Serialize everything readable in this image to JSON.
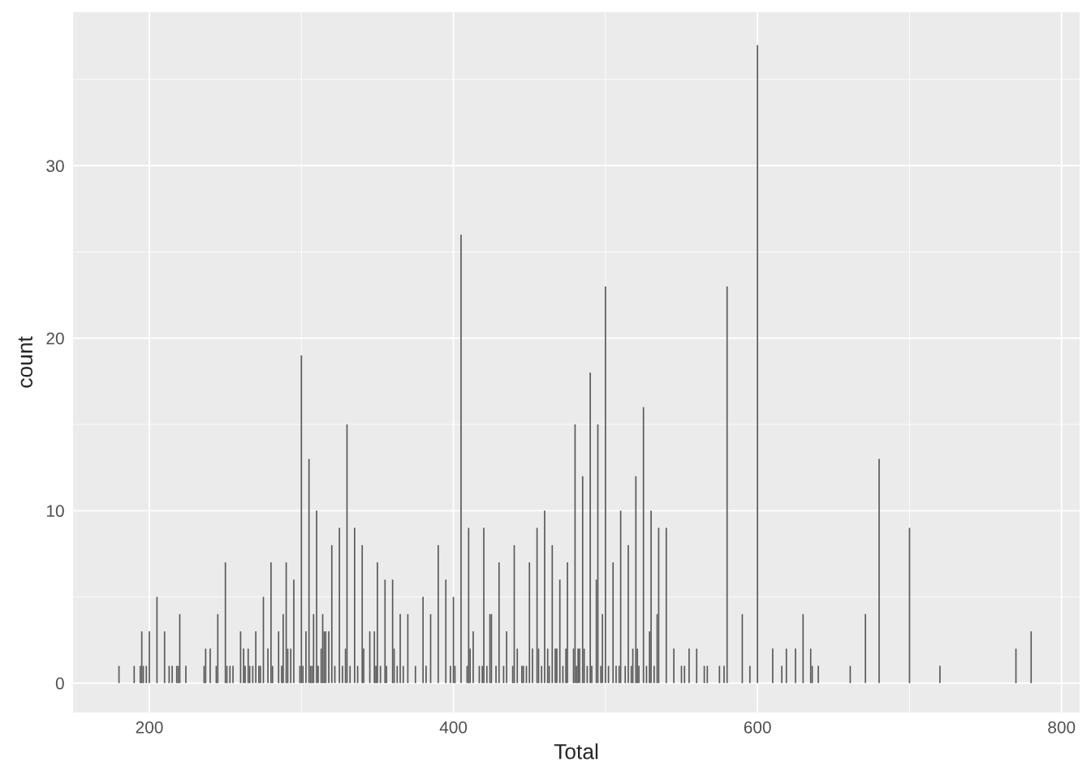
{
  "chart_data": {
    "type": "bar",
    "xlabel": "Total",
    "ylabel": "count",
    "color": "#595959",
    "grid": true,
    "x": [
      180,
      190,
      194,
      195,
      196,
      198,
      200,
      205,
      210,
      213,
      215,
      218,
      219,
      220,
      224,
      236,
      237,
      240,
      244,
      245,
      250,
      251,
      253,
      255,
      260,
      262,
      263,
      265,
      266,
      268,
      270,
      272,
      273,
      275,
      278,
      280,
      281,
      285,
      287,
      288,
      290,
      291,
      293,
      295,
      299,
      300,
      301,
      303,
      305,
      306,
      307,
      308,
      310,
      311,
      313,
      314,
      315,
      316,
      318,
      320,
      322,
      325,
      327,
      329,
      330,
      332,
      335,
      337,
      340,
      341,
      345,
      348,
      349,
      350,
      352,
      355,
      356,
      360,
      361,
      363,
      365,
      367,
      370,
      375,
      380,
      382,
      385,
      390,
      395,
      398,
      400,
      401,
      405,
      409,
      410,
      411,
      413,
      417,
      419,
      420,
      422,
      424,
      425,
      428,
      430,
      433,
      435,
      439,
      440,
      442,
      445,
      446,
      448,
      450,
      452,
      455,
      456,
      458,
      460,
      462,
      463,
      465,
      467,
      468,
      470,
      472,
      474,
      475,
      479,
      480,
      481,
      482,
      483,
      485,
      486,
      488,
      490,
      491,
      494,
      495,
      497,
      498,
      500,
      502,
      505,
      507,
      509,
      510,
      513,
      515,
      517,
      518,
      520,
      521,
      522,
      525,
      527,
      529,
      530,
      532,
      534,
      535,
      540,
      545,
      550,
      552,
      555,
      560,
      565,
      567,
      575,
      578,
      580,
      590,
      595,
      600,
      610,
      616,
      619,
      625,
      630,
      635,
      636,
      640,
      661,
      671,
      680,
      700,
      720,
      770,
      780
    ],
    "values": [
      1,
      1,
      1,
      3,
      1,
      1,
      3,
      5,
      3,
      1,
      1,
      1,
      1,
      4,
      1,
      1,
      2,
      2,
      1,
      4,
      7,
      1,
      1,
      1,
      3,
      2,
      1,
      2,
      1,
      1,
      3,
      1,
      1,
      5,
      2,
      7,
      1,
      3,
      1,
      4,
      7,
      2,
      2,
      6,
      1,
      19,
      1,
      3,
      13,
      1,
      1,
      4,
      10,
      1,
      2,
      4,
      3,
      3,
      3,
      8,
      1,
      9,
      1,
      2,
      15,
      1,
      9,
      1,
      8,
      2,
      3,
      3,
      1,
      7,
      1,
      6,
      1,
      6,
      2,
      1,
      4,
      1,
      4,
      1,
      5,
      1,
      4,
      8,
      6,
      1,
      5,
      1,
      26,
      1,
      9,
      2,
      3,
      1,
      1,
      9,
      1,
      4,
      4,
      1,
      7,
      1,
      3,
      1,
      8,
      2,
      1,
      1,
      1,
      7,
      2,
      9,
      2,
      1,
      10,
      2,
      1,
      8,
      2,
      2,
      6,
      1,
      2,
      7,
      2,
      15,
      1,
      2,
      2,
      12,
      2,
      1,
      18,
      1,
      6,
      15,
      1,
      4,
      23,
      1,
      7,
      1,
      1,
      10,
      1,
      8,
      1,
      2,
      12,
      2,
      1,
      16,
      1,
      3,
      10,
      1,
      4,
      9,
      9,
      2,
      1,
      1,
      2,
      2,
      1,
      1,
      1,
      1,
      23,
      4,
      1,
      37,
      2,
      1,
      2,
      2,
      4,
      2,
      1,
      1,
      1,
      4,
      13,
      9,
      1,
      2,
      3
    ],
    "xlim": [
      149.8,
      811.9
    ],
    "ylim": [
      -1.7,
      38.9
    ],
    "xticks": [
      200,
      400,
      600,
      800
    ],
    "yticks": [
      0,
      10,
      20,
      30
    ]
  }
}
